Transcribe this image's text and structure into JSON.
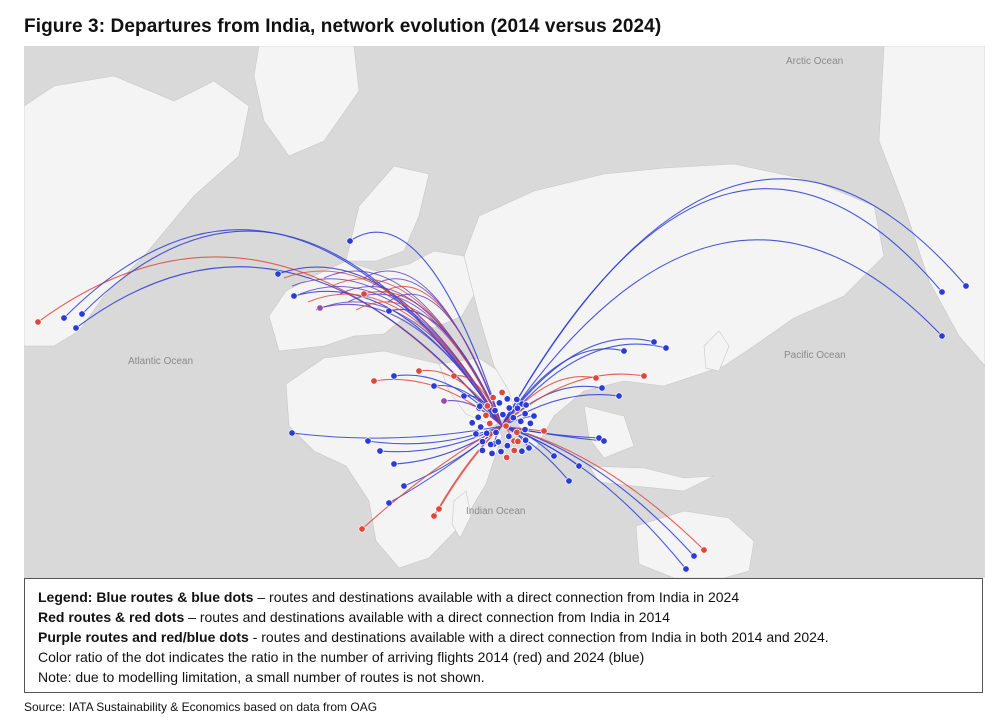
{
  "figure": {
    "title": "Figure 3: Departures from India, network evolution (2014 versus 2024)"
  },
  "map": {
    "ocean_labels": [
      "Arctic Ocean",
      "Atlantic Ocean",
      "Pacific Ocean",
      "Indian Ocean"
    ],
    "colors": {
      "land": "#f4f4f4",
      "water": "#d9d9d9",
      "route_2024": "#2b3bd6",
      "route_2014": "#e0463c",
      "route_both": "#5a3fc0"
    }
  },
  "legend": {
    "line1_bold": "Legend: Blue routes & blue dots",
    "line1_text": " – routes and destinations available with a direct connection from India in 2024",
    "line2_bold": "Red routes & red dots",
    "line2_text": " – routes and destinations available with a direct connection from India in 2014",
    "line3_bold": "Purple routes and red/blue dots",
    "line3_text": " - routes and destinations available with a direct connection from India in both 2014 and 2024.",
    "line4_text": "Color ratio of the dot indicates the ratio in the number of arriving flights 2014 (red) and 2024 (blue)",
    "line5_text": "Note: due to modelling limitation, a small number of routes is not shown."
  },
  "source": "Source: IATA Sustainability & Economics based on data from OAG"
}
